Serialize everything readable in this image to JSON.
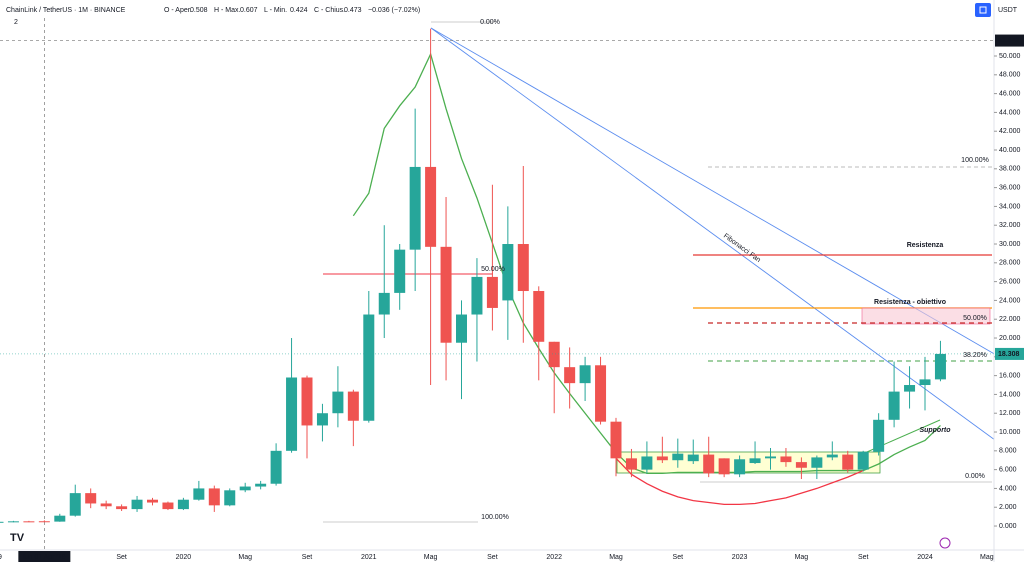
{
  "header": {
    "symbol": "ChainLink / TetherUS · 1M · BINANCE",
    "ohlc_labels": [
      "O - Aper.",
      "H - Max.",
      "L - Min.",
      "C - Chius."
    ],
    "change": "−0.036 (−7.02%)",
    "indicator_count": 2,
    "currency": "USDT"
  },
  "chart_data": {
    "type": "candlestick",
    "categories": [
      "19",
      null,
      null,
      null,
      null,
      null,
      null,
      null,
      "Set",
      null,
      null,
      null,
      "2020",
      null,
      null,
      null,
      "Mag",
      null,
      null,
      null,
      "Set",
      null,
      null,
      null,
      "2021",
      null,
      null,
      null,
      "Mag",
      null,
      null,
      null,
      "Set",
      null,
      null,
      null,
      "2022",
      null,
      null,
      null,
      "Mag",
      null,
      null,
      null,
      "Set",
      null,
      null,
      null,
      "2023",
      null,
      null,
      null,
      "Mag",
      null,
      null,
      null,
      "Set",
      null,
      null,
      null,
      "2024",
      null,
      null,
      null,
      "Mag"
    ],
    "open": [
      0.4,
      0.45,
      0.5,
      0.508,
      0.47,
      1.1,
      3.5,
      2.4,
      2.1,
      1.8,
      2.8,
      2.5,
      1.8,
      2.8,
      4.0,
      2.2,
      3.8,
      4.2,
      4.5,
      8.0,
      15.8,
      10.7,
      12.0,
      14.3,
      11.2,
      22.5,
      24.8,
      29.4,
      38.2,
      29.7,
      19.5,
      22.5,
      26.5,
      24.0,
      30.0,
      25.0,
      19.6,
      16.9,
      15.2,
      17.1,
      11.1,
      7.2,
      6.0,
      7.4,
      7.0,
      6.9,
      7.6,
      7.2,
      5.5,
      6.7,
      7.2,
      7.4,
      6.8,
      6.2,
      7.3,
      7.6,
      6.0,
      7.9,
      11.3,
      14.3,
      15.0,
      15.6,
      null,
      null,
      null
    ],
    "high": [
      0.5,
      0.55,
      0.55,
      0.607,
      1.3,
      4.4,
      4.0,
      2.7,
      2.3,
      3.2,
      3.0,
      2.6,
      3.0,
      4.8,
      4.3,
      4.0,
      4.6,
      4.8,
      8.8,
      20.0,
      16.0,
      13.0,
      17.0,
      14.5,
      25.0,
      32.0,
      30.0,
      44.4,
      52.9,
      35.0,
      24.0,
      28.5,
      36.3,
      34.0,
      38.3,
      25.5,
      19.6,
      19.0,
      18.0,
      18.0,
      11.5,
      8.2,
      9.0,
      9.5,
      9.3,
      9.2,
      9.5,
      7.2,
      7.5,
      9.0,
      8.3,
      8.3,
      7.3,
      7.5,
      9.0,
      8.0,
      8.0,
      12.0,
      17.5,
      17.0,
      18.0,
      19.7,
      null,
      null,
      null
    ],
    "low": [
      0.35,
      0.4,
      0.42,
      0.424,
      0.45,
      1.0,
      1.9,
      1.8,
      1.6,
      1.5,
      2.2,
      1.7,
      1.7,
      2.7,
      1.5,
      2.1,
      3.6,
      3.9,
      4.3,
      7.8,
      7.2,
      9.0,
      10.5,
      8.5,
      11.0,
      20.0,
      23.0,
      25.0,
      15.0,
      15.5,
      13.5,
      17.5,
      20.8,
      19.8,
      19.5,
      15.5,
      12.0,
      12.5,
      13.3,
      10.8,
      5.3,
      5.2,
      5.6,
      6.7,
      6.2,
      6.6,
      5.2,
      5.2,
      5.2,
      6.6,
      6.0,
      6.3,
      5.0,
      5.0,
      7.0,
      5.7,
      5.8,
      7.5,
      10.5,
      12.5,
      12.3,
      15.4,
      null,
      null,
      null
    ],
    "close": [
      0.45,
      0.5,
      0.48,
      0.473,
      1.1,
      3.5,
      2.4,
      2.1,
      1.8,
      2.8,
      2.5,
      1.8,
      2.8,
      4.0,
      2.2,
      3.8,
      4.2,
      4.5,
      8.0,
      15.8,
      10.7,
      12.0,
      14.3,
      11.2,
      22.5,
      24.8,
      29.4,
      38.2,
      29.7,
      19.5,
      22.5,
      26.5,
      23.2,
      30.0,
      25.0,
      19.6,
      16.9,
      15.2,
      17.1,
      11.1,
      7.2,
      6.0,
      7.4,
      7.0,
      7.7,
      7.6,
      5.6,
      5.5,
      7.1,
      7.2,
      7.4,
      6.8,
      6.2,
      7.3,
      7.6,
      6.0,
      7.9,
      11.3,
      14.3,
      15.0,
      15.6,
      18.308,
      null,
      null,
      null
    ],
    "up_color": "#26a69a",
    "down_color": "#ef5350",
    "lines": [
      {
        "color": "#4caf50",
        "values": [
          null,
          null,
          null,
          null,
          null,
          null,
          null,
          null,
          null,
          null,
          null,
          null,
          null,
          null,
          null,
          null,
          null,
          null,
          null,
          null,
          null,
          null,
          null,
          33.0,
          35.4,
          42.3,
          44.7,
          46.7,
          50.2,
          44.4,
          39.1,
          34.9,
          30.1,
          25.3,
          21.6,
          18.9,
          16.3,
          14.1,
          12.0,
          9.9,
          7.8,
          6.2,
          5.6,
          5.6,
          5.7,
          5.7,
          5.7,
          5.7,
          5.7,
          5.8,
          5.8,
          5.8,
          5.8,
          5.9,
          5.9,
          5.9,
          5.9,
          6.6,
          7.6,
          8.4,
          9.1,
          10.7,
          null,
          null,
          null
        ]
      },
      {
        "color": "#f23645",
        "values": [
          null,
          null,
          null,
          null,
          null,
          null,
          null,
          null,
          null,
          null,
          null,
          null,
          null,
          null,
          null,
          null,
          null,
          null,
          null,
          null,
          null,
          null,
          null,
          null,
          null,
          null,
          null,
          null,
          null,
          null,
          null,
          null,
          null,
          null,
          null,
          null,
          null,
          null,
          null,
          null,
          7.2,
          5.5,
          4.5,
          3.7,
          3.1,
          2.7,
          2.5,
          2.3,
          2.3,
          2.4,
          2.7,
          3.0,
          3.5,
          4.0,
          4.6,
          5.2,
          5.9,
          null,
          null,
          null,
          null,
          null,
          null,
          null,
          null
        ]
      }
    ],
    "ylim": [
      -2.55,
      53.83
    ],
    "yticks": [
      {
        "value": 0,
        "label": "0.000"
      },
      {
        "value": 2,
        "label": "2.000"
      },
      {
        "value": 4,
        "label": "4.000"
      },
      {
        "value": 6,
        "label": "6.000"
      },
      {
        "value": 8,
        "label": "8.000"
      },
      {
        "value": 10,
        "label": "10.000"
      },
      {
        "value": 12,
        "label": "12.000"
      },
      {
        "value": 14,
        "label": "14.000"
      },
      {
        "value": 16,
        "label": "16.000"
      },
      {
        "value": 18,
        "label": "18.000"
      },
      {
        "value": 20,
        "label": "20.000"
      },
      {
        "value": 22,
        "label": "22.000"
      },
      {
        "value": 24,
        "label": "24.000"
      },
      {
        "value": 26,
        "label": "26.000"
      },
      {
        "value": 28,
        "label": "28.000"
      },
      {
        "value": 30,
        "label": "30.000"
      },
      {
        "value": 32,
        "label": "32.000"
      },
      {
        "value": 34,
        "label": "34.000"
      },
      {
        "value": 36,
        "label": "36.000"
      },
      {
        "value": 38,
        "label": "38.000"
      },
      {
        "value": 40,
        "label": "40.000"
      },
      {
        "value": 42,
        "label": "42.000"
      },
      {
        "value": 44,
        "label": "44.000"
      },
      {
        "value": 46,
        "label": "46.000"
      },
      {
        "value": 48,
        "label": "48.000"
      },
      {
        "value": 50,
        "label": "50.000"
      }
    ],
    "crosshair": {
      "price": 51.642,
      "date_label": "lun 01 Apr '19"
    },
    "annotations": [
      "Resistenza",
      "Resistenza - obiettivo",
      "Supporto",
      "Fibonacci Fan"
    ],
    "fib_labels": [
      "0.00%",
      "50.00%",
      "100.00%",
      "100.00%",
      "50.00%",
      "38.20%",
      "0.00%"
    ]
  }
}
